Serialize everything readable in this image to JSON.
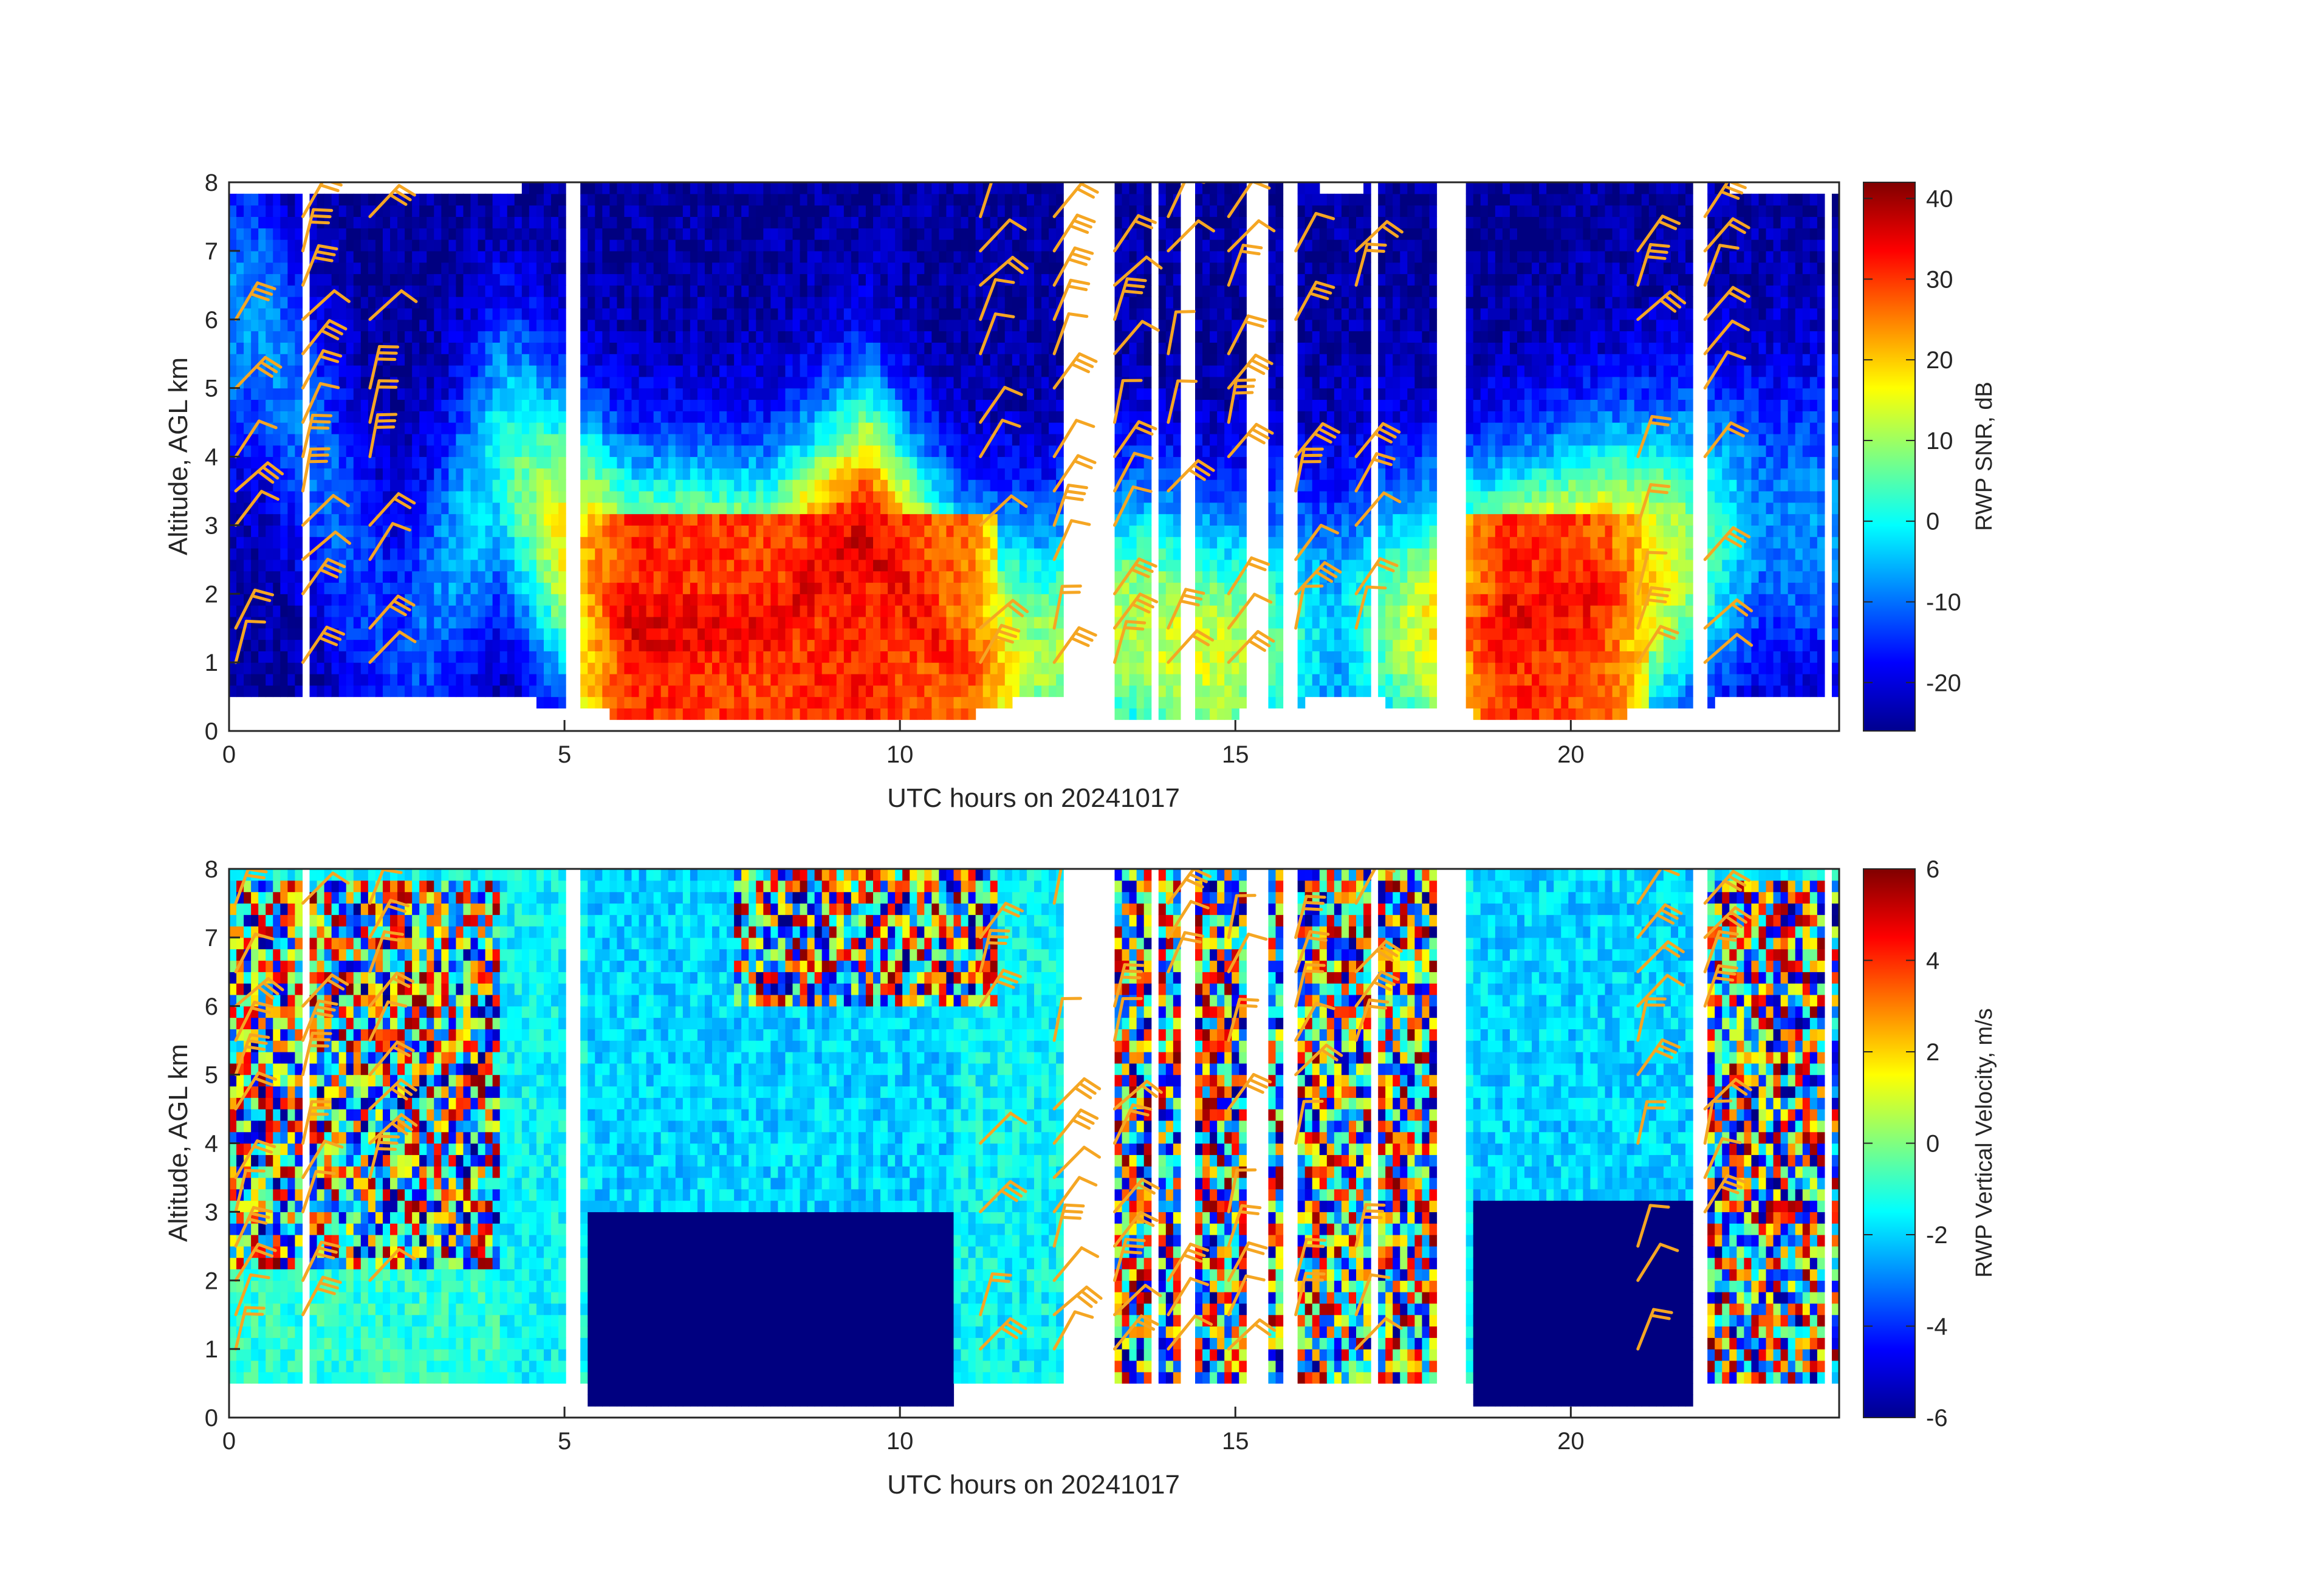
{
  "chart_data": [
    {
      "type": "heatmap",
      "xlabel": "UTC hours on 20241017",
      "ylabel": "Altitude, AGL km",
      "xlim": [
        0,
        24
      ],
      "ylim": [
        0,
        8
      ],
      "xticks": [
        0,
        5,
        10,
        15,
        20
      ],
      "yticks": [
        0,
        1,
        2,
        3,
        4,
        5,
        6,
        7,
        8
      ],
      "colorbar": {
        "label": "RWP SNR, dB",
        "range": [
          -26,
          42
        ],
        "ticks": [
          -20,
          -10,
          0,
          10,
          20,
          30,
          40
        ],
        "colormap": "jet"
      },
      "overlay": "wind barbs (orange)",
      "barb_color": "#f5a623",
      "data_gaps_utc_hours": [
        [
          1.05,
          1.2
        ],
        [
          1.4,
          1.45
        ],
        [
          5.0,
          5.25
        ],
        [
          12.45,
          13.2
        ],
        [
          13.7,
          13.8
        ],
        [
          14.15,
          14.4
        ],
        [
          15.2,
          15.5
        ],
        [
          15.75,
          15.9
        ],
        [
          17.0,
          17.1
        ],
        [
          17.95,
          18.45
        ],
        [
          21.8,
          22.05
        ],
        [
          23.8,
          23.85
        ]
      ],
      "profiles": [
        {
          "x": 0.5,
          "top": 7.9,
          "base": 0.5,
          "peak": -8,
          "peak_alt": 6.0
        },
        {
          "x": 2.5,
          "top": 7.9,
          "base": 0.5,
          "peak": -14,
          "peak_alt": 1.0
        },
        {
          "x": 4.0,
          "top": 7.9,
          "base": 0.5,
          "peak": 0,
          "peak_alt": 4.0
        },
        {
          "x": 6.0,
          "top": 8.0,
          "base": 0.2,
          "peak": 35,
          "peak_alt": 1.5
        },
        {
          "x": 8.0,
          "top": 8.0,
          "base": 0.2,
          "peak": 33,
          "peak_alt": 1.5
        },
        {
          "x": 9.5,
          "top": 8.0,
          "base": 0.2,
          "peak": 36,
          "peak_alt": 2.8
        },
        {
          "x": 11.0,
          "top": 8.0,
          "base": 0.2,
          "peak": 30,
          "peak_alt": 0.8
        },
        {
          "x": 12.0,
          "top": 8.0,
          "base": 0.5,
          "peak": 10,
          "peak_alt": 1.0
        },
        {
          "x": 13.5,
          "top": 8.0,
          "base": 0.2,
          "peak": 12,
          "peak_alt": 1.5
        },
        {
          "x": 14.8,
          "top": 8.0,
          "base": 0.2,
          "peak": 14,
          "peak_alt": 1.0
        },
        {
          "x": 16.5,
          "top": 7.9,
          "base": 0.5,
          "peak": -5,
          "peak_alt": 1.5
        },
        {
          "x": 19.0,
          "top": 8.0,
          "base": 0.2,
          "peak": 35,
          "peak_alt": 1.5
        },
        {
          "x": 20.5,
          "top": 8.0,
          "base": 0.2,
          "peak": 32,
          "peak_alt": 2.0
        },
        {
          "x": 22.8,
          "top": 7.9,
          "base": 0.5,
          "peak": -8,
          "peak_alt": 3.0
        }
      ]
    },
    {
      "type": "heatmap",
      "xlabel": "UTC hours on 20241017",
      "ylabel": "Altitude, AGL km",
      "xlim": [
        0,
        24
      ],
      "ylim": [
        0,
        8
      ],
      "xticks": [
        0,
        5,
        10,
        15,
        20
      ],
      "yticks": [
        0,
        1,
        2,
        3,
        4,
        5,
        6,
        7,
        8
      ],
      "colorbar": {
        "label": "RWP Vertical Velocity, m/s",
        "range": [
          -6,
          6
        ],
        "ticks": [
          -6,
          -4,
          -2,
          0,
          2,
          4,
          6
        ],
        "colormap": "jet"
      },
      "overlay": "wind barbs (orange)",
      "barb_color": "#f5a623",
      "data_gaps_utc_hours": [
        [
          1.05,
          1.2
        ],
        [
          1.4,
          1.45
        ],
        [
          5.0,
          5.25
        ],
        [
          12.45,
          13.2
        ],
        [
          13.7,
          13.8
        ],
        [
          14.15,
          14.4
        ],
        [
          15.2,
          15.5
        ],
        [
          15.75,
          15.9
        ],
        [
          17.0,
          17.1
        ],
        [
          17.95,
          18.45
        ],
        [
          21.8,
          22.05
        ],
        [
          23.8,
          23.85
        ]
      ],
      "regions": [
        {
          "x": [
            5.3,
            10.8
          ],
          "alt": [
            0.2,
            3.0
          ],
          "value": -6
        },
        {
          "x": [
            18.5,
            21.8
          ],
          "alt": [
            0.2,
            3.2
          ],
          "value": -6
        },
        {
          "x": [
            5.3,
            10.8
          ],
          "alt": [
            3.0,
            8.0
          ],
          "value": -2
        },
        {
          "x": [
            18.5,
            21.8
          ],
          "alt": [
            3.2,
            8.0
          ],
          "value": -2
        },
        {
          "x": [
            0.0,
            4.0
          ],
          "alt": [
            0.5,
            2.2
          ],
          "value": -1
        },
        {
          "x": [
            0.0,
            4.0
          ],
          "alt": [
            2.2,
            7.9
          ],
          "value": "noisy ±6"
        },
        {
          "x": [
            12.4,
            18.3
          ],
          "alt": [
            0.5,
            8.0
          ],
          "value": "noisy ±6"
        },
        {
          "x": [
            22.0,
            24.0
          ],
          "alt": [
            0.5,
            7.9
          ],
          "value": "noisy ±6"
        },
        {
          "x": [
            7.5,
            11.5
          ],
          "alt": [
            6.0,
            8.0
          ],
          "value": "noisy ±6"
        }
      ]
    }
  ]
}
